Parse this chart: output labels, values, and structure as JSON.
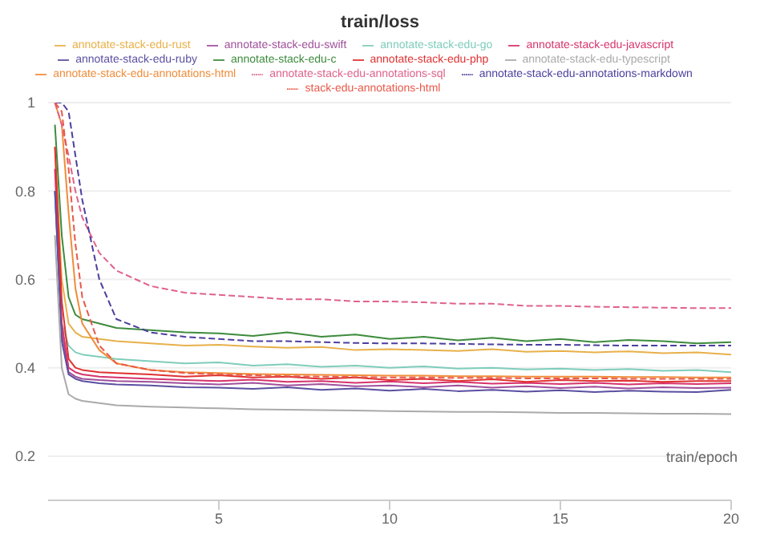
{
  "chart_data": {
    "type": "line",
    "title": "train/loss",
    "xlabel": "train/epoch",
    "x": [
      0.2,
      0.4,
      0.6,
      0.8,
      1,
      1.5,
      2,
      3,
      4,
      5,
      6,
      7,
      8,
      9,
      10,
      11,
      12,
      13,
      14,
      15,
      16,
      17,
      18,
      19,
      20
    ],
    "xlim": [
      0,
      20
    ],
    "xticks": [
      5,
      10,
      15,
      20
    ],
    "ylim": [
      0.1,
      1
    ],
    "yticks": [
      0.2,
      0.4,
      0.6,
      0.8,
      1
    ],
    "grid": "y",
    "legend": "top",
    "series": [
      {
        "name": "annotate-stack-edu-rust",
        "color": "#e8b04a",
        "values": [
          0.9,
          0.6,
          0.5,
          0.48,
          0.47,
          0.465,
          0.46,
          0.455,
          0.45,
          0.452,
          0.448,
          0.445,
          0.447,
          0.44,
          0.442,
          0.44,
          0.438,
          0.442,
          0.436,
          0.438,
          0.435,
          0.437,
          0.433,
          0.435,
          0.43
        ]
      },
      {
        "name": "annotate-stack-edu-swift",
        "color": "#a0509c",
        "values": [
          0.8,
          0.48,
          0.39,
          0.38,
          0.375,
          0.372,
          0.37,
          0.368,
          0.365,
          0.362,
          0.366,
          0.36,
          0.363,
          0.358,
          0.36,
          0.356,
          0.36,
          0.355,
          0.358,
          0.354,
          0.357,
          0.353,
          0.356,
          0.354,
          0.355
        ]
      },
      {
        "name": "annotate-stack-edu-go",
        "color": "#7fcdbb",
        "values": [
          0.8,
          0.5,
          0.45,
          0.435,
          0.43,
          0.425,
          0.42,
          0.415,
          0.41,
          0.412,
          0.405,
          0.408,
          0.402,
          0.405,
          0.4,
          0.403,
          0.398,
          0.4,
          0.396,
          0.398,
          0.395,
          0.397,
          0.393,
          0.395,
          0.39
        ]
      },
      {
        "name": "annotate-stack-edu-javascript",
        "color": "#d6336c",
        "values": [
          0.85,
          0.5,
          0.4,
          0.39,
          0.385,
          0.38,
          0.378,
          0.375,
          0.372,
          0.37,
          0.373,
          0.368,
          0.37,
          0.366,
          0.369,
          0.365,
          0.368,
          0.364,
          0.366,
          0.363,
          0.366,
          0.362,
          0.365,
          0.363,
          0.365
        ]
      },
      {
        "name": "annotate-stack-edu-ruby",
        "color": "#5a4fa0",
        "values": [
          0.8,
          0.46,
          0.385,
          0.375,
          0.37,
          0.365,
          0.362,
          0.36,
          0.356,
          0.355,
          0.352,
          0.356,
          0.35,
          0.353,
          0.348,
          0.352,
          0.347,
          0.35,
          0.346,
          0.349,
          0.345,
          0.348,
          0.346,
          0.345,
          0.35
        ]
      },
      {
        "name": "annotate-stack-edu-c",
        "color": "#3d8b3d",
        "values": [
          0.95,
          0.7,
          0.56,
          0.52,
          0.51,
          0.5,
          0.49,
          0.485,
          0.48,
          0.478,
          0.472,
          0.48,
          0.47,
          0.475,
          0.465,
          0.47,
          0.462,
          0.468,
          0.46,
          0.465,
          0.458,
          0.463,
          0.46,
          0.455,
          0.458
        ]
      },
      {
        "name": "annotate-stack-edu-php",
        "color": "#e03131",
        "values": [
          0.9,
          0.55,
          0.42,
          0.4,
          0.395,
          0.39,
          0.388,
          0.385,
          0.38,
          0.383,
          0.378,
          0.38,
          0.375,
          0.378,
          0.372,
          0.375,
          0.37,
          0.374,
          0.368,
          0.372,
          0.37,
          0.371,
          0.368,
          0.37,
          0.37
        ]
      },
      {
        "name": "annotate-stack-edu-typescript",
        "color": "#aaaaaa",
        "values": [
          0.7,
          0.4,
          0.34,
          0.33,
          0.325,
          0.32,
          0.315,
          0.312,
          0.31,
          0.308,
          0.306,
          0.305,
          0.304,
          0.303,
          0.302,
          0.301,
          0.3,
          0.3,
          0.299,
          0.298,
          0.298,
          0.297,
          0.296,
          0.296,
          0.295
        ]
      },
      {
        "name": "annotate-stack-edu-annotations-html",
        "color": "#f08c3a",
        "values": [
          1,
          0.95,
          0.75,
          0.58,
          0.5,
          0.44,
          0.41,
          0.395,
          0.39,
          0.388,
          0.386,
          0.385,
          0.384,
          0.383,
          0.382,
          0.382,
          0.381,
          0.381,
          0.38,
          0.38,
          0.38,
          0.379,
          0.379,
          0.378,
          0.378
        ]
      },
      {
        "name": "annotate-stack-edu-annotations-sql",
        "color": "#e0628a",
        "line_style": "dashed",
        "values": [
          1,
          0.95,
          0.88,
          0.8,
          0.74,
          0.66,
          0.62,
          0.585,
          0.57,
          0.565,
          0.56,
          0.555,
          0.555,
          0.55,
          0.55,
          0.548,
          0.545,
          0.545,
          0.54,
          0.54,
          0.538,
          0.537,
          0.536,
          0.535,
          0.535
        ]
      },
      {
        "name": "annotate-stack-edu-annotations-markdown",
        "color": "#4b3f9e",
        "line_style": "dashed",
        "values": [
          1,
          1,
          0.98,
          0.88,
          0.78,
          0.6,
          0.51,
          0.48,
          0.47,
          0.465,
          0.46,
          0.46,
          0.458,
          0.456,
          0.455,
          0.455,
          0.454,
          0.453,
          0.452,
          0.452,
          0.451,
          0.45,
          0.45,
          0.45,
          0.45
        ]
      },
      {
        "name": "stack-edu-annotations-html",
        "color": "#e8594a",
        "line_style": "dashed",
        "values": [
          1,
          0.98,
          0.85,
          0.68,
          0.56,
          0.45,
          0.41,
          0.395,
          0.388,
          0.385,
          0.383,
          0.381,
          0.38,
          0.379,
          0.378,
          0.378,
          0.377,
          0.377,
          0.376,
          0.376,
          0.376,
          0.375,
          0.375,
          0.375,
          0.375
        ]
      }
    ]
  }
}
